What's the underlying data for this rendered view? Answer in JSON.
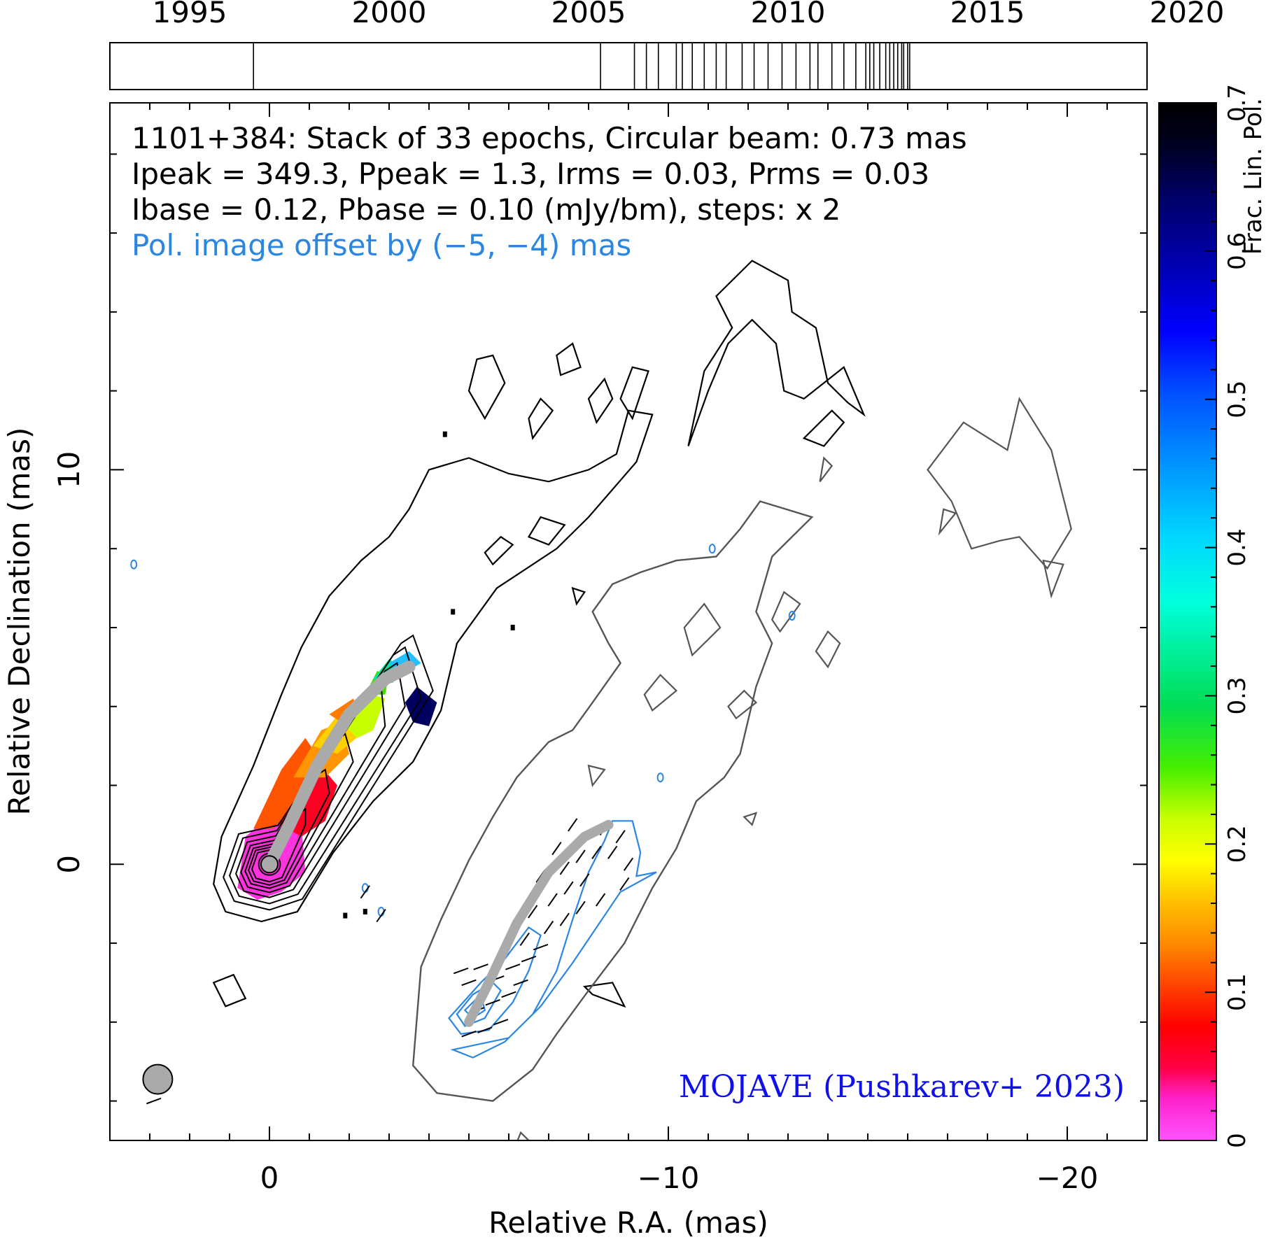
{
  "chart_data": {
    "type": "contour_map",
    "source": "1101+384",
    "annotations": {
      "line1": "1101+384: Stack of 33 epochs, Circular beam: 0.73 mas",
      "line2": "Ipeak = 349.3, Ppeak = 1.3, Irms = 0.03, Prms = 0.03",
      "line3": "Ibase = 0.12, Pbase = 0.10 (mJy/bm), steps: x 2",
      "line4": "Pol. image offset by (−5, −4) mas"
    },
    "credit": "MOJAVE (Pushkarev+ 2023)",
    "xlabel": "Relative R.A. (mas)",
    "ylabel": "Relative Declination (mas)",
    "xlim": [
      4,
      -22
    ],
    "ylim": [
      -7,
      19.3
    ],
    "x_ticks": [
      {
        "value": 0,
        "label": "0"
      },
      {
        "value": -10,
        "label": "−10"
      },
      {
        "value": -20,
        "label": "−20"
      }
    ],
    "y_ticks": [
      {
        "value": 0,
        "label": "0"
      },
      {
        "value": 10,
        "label": "10"
      }
    ],
    "epoch_timeline": {
      "range": [
        1993,
        2019
      ],
      "labels": [
        "1995",
        "2000",
        "2005",
        "2010",
        "2015",
        "2020"
      ],
      "label_years": [
        1995,
        2000,
        2005,
        2010,
        2015,
        2020
      ],
      "epochs": [
        1996.6,
        2005.3,
        2006.15,
        2006.45,
        2006.75,
        2007.2,
        2007.35,
        2007.6,
        2007.9,
        2008.2,
        2008.45,
        2008.85,
        2009.15,
        2009.5,
        2009.85,
        2010.2,
        2010.55,
        2010.75,
        2011.1,
        2011.4,
        2011.7,
        2011.95,
        2012.05,
        2012.15,
        2012.3,
        2012.45,
        2012.55,
        2012.65,
        2012.75,
        2012.85,
        2012.9,
        2013.0,
        2013.05
      ]
    },
    "colorbar": {
      "label": "Frac. Lin. Pol.",
      "range": [
        0,
        0.7
      ],
      "ticks": [
        "0",
        "0.1",
        "0.2",
        "0.3",
        "0.4",
        "0.5",
        "0.6",
        "0.7"
      ],
      "tick_values": [
        0,
        0.1,
        0.2,
        0.3,
        0.4,
        0.5,
        0.6,
        0.7
      ]
    },
    "core": {
      "ra": 0,
      "dec": 0
    },
    "beam_diameter_mas": 0.73,
    "pol_offset_mas": [
      -5,
      -4
    ],
    "jet_ridge_total_intensity": [
      [
        0,
        0
      ],
      [
        -0.5,
        1.0
      ],
      [
        -1.2,
        2.5
      ],
      [
        -2.0,
        3.8
      ],
      [
        -2.9,
        4.7
      ],
      [
        -3.5,
        5.0
      ]
    ],
    "jet_ridge_polarization": [
      [
        -5,
        -4
      ],
      [
        -5.5,
        -3
      ],
      [
        -6.2,
        -1.5
      ],
      [
        -7.0,
        -0.2
      ],
      [
        -7.9,
        0.7
      ],
      [
        -8.5,
        1.0
      ]
    ],
    "fractional_pol_samples": [
      {
        "ra": 0,
        "dec": 0,
        "m": 0.01
      },
      {
        "ra": -0.9,
        "dec": 1.5,
        "m": 0.05
      },
      {
        "ra": -1.6,
        "dec": 2.6,
        "m": 0.1
      },
      {
        "ra": -2.3,
        "dec": 3.6,
        "m": 0.18
      },
      {
        "ra": -2.8,
        "dec": 4.6,
        "m": 0.28
      },
      {
        "ra": -3.0,
        "dec": 5.0,
        "m": 0.38
      },
      {
        "ra": -3.9,
        "dec": 4.0,
        "m": 0.62
      }
    ]
  }
}
